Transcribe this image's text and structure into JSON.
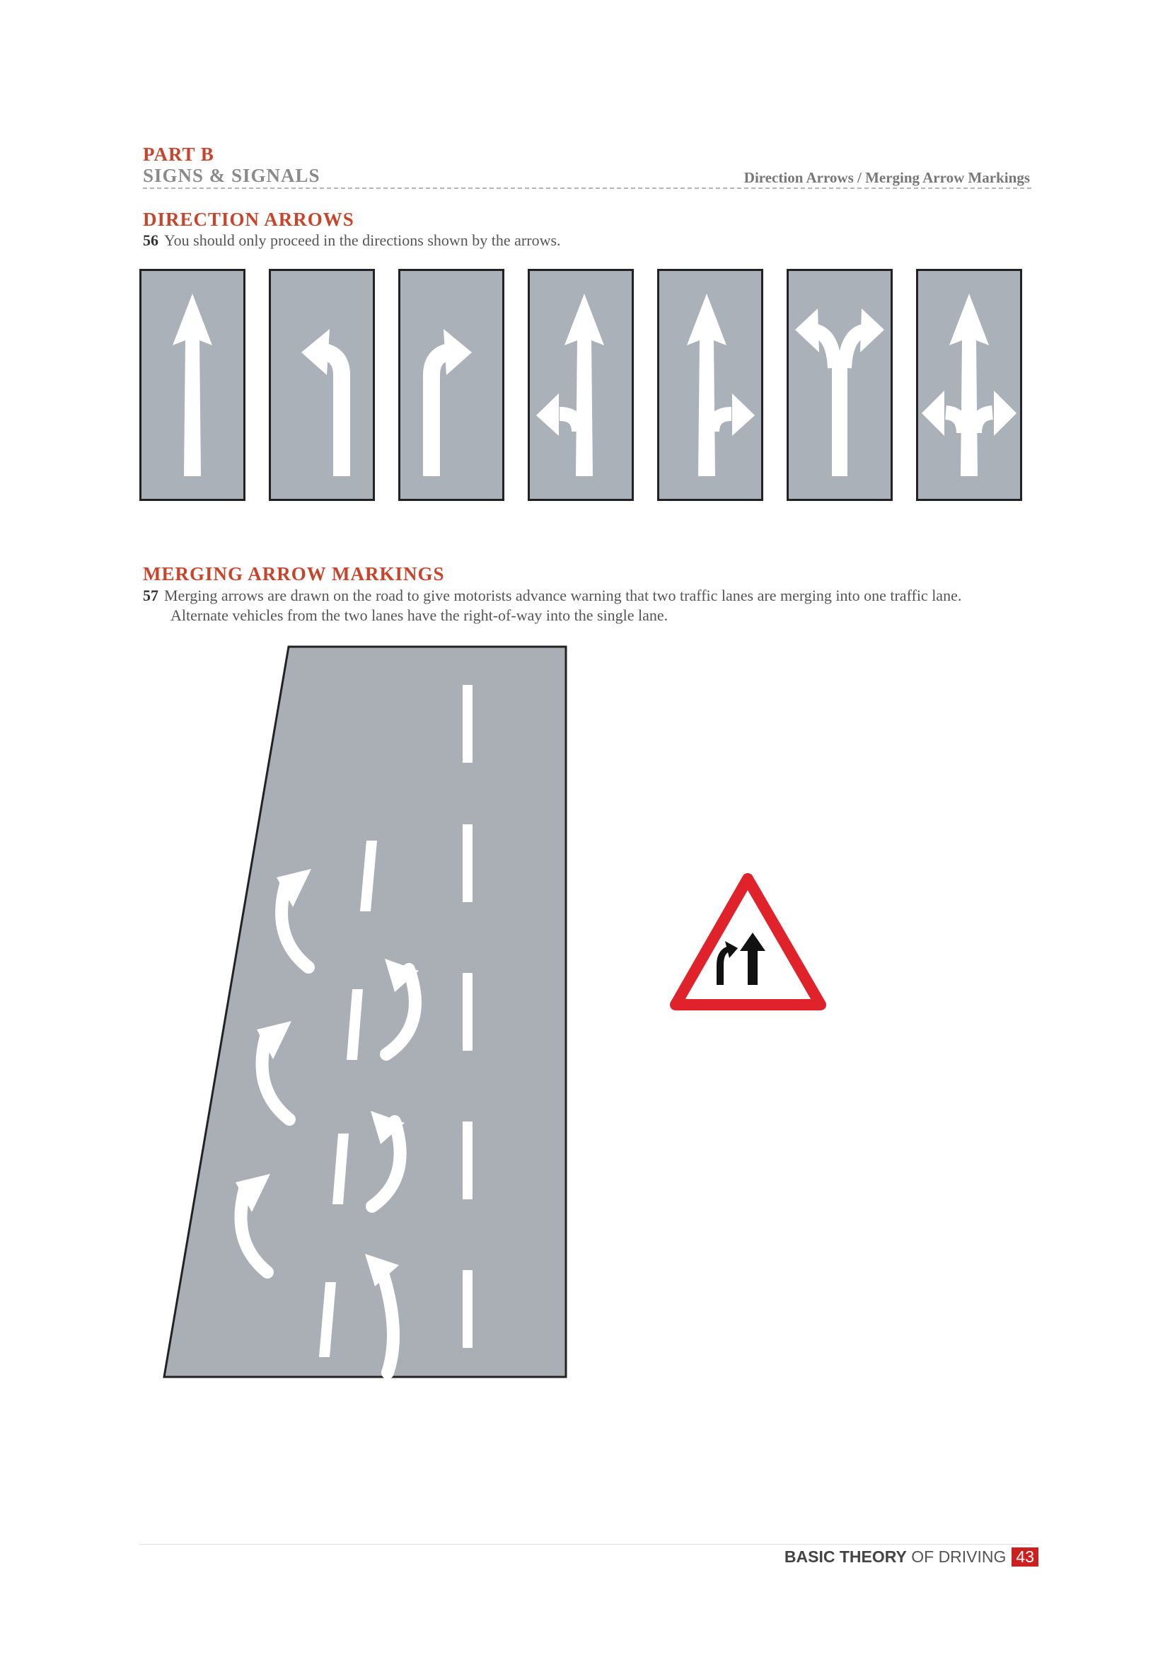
{
  "header": {
    "part": "PART B",
    "section": "SIGNS & SIGNALS",
    "topic": "Direction Arrows / Merging Arrow Markings"
  },
  "direction_arrows": {
    "title": "DIRECTION ARROWS",
    "number": "56",
    "text": "You should only proceed in the directions shown by the arrows.",
    "arrows": [
      "straight-arrow-icon",
      "left-turn-arrow-icon",
      "right-turn-arrow-icon",
      "straight-or-left-arrow-icon",
      "straight-or-right-arrow-icon",
      "left-or-right-arrow-icon",
      "straight-left-or-right-arrow-icon"
    ]
  },
  "merging_arrows": {
    "title": "MERGING ARROW MARKINGS",
    "number": "57",
    "text_line1": "Merging arrows are drawn on the road to give motorists advance warning that two traffic lanes are merging into one traffic lane.",
    "text_line2": "Alternate vehicles from the two lanes have the right-of-way into the single lane."
  },
  "footer": {
    "bold": "BASIC THEORY",
    "rest": "OF DRIVING",
    "page": "43"
  },
  "colors": {
    "accent": "#c8452c",
    "road": "#a9afb5",
    "sign_red": "#e0222b",
    "page_badge": "#cc1f1f"
  }
}
